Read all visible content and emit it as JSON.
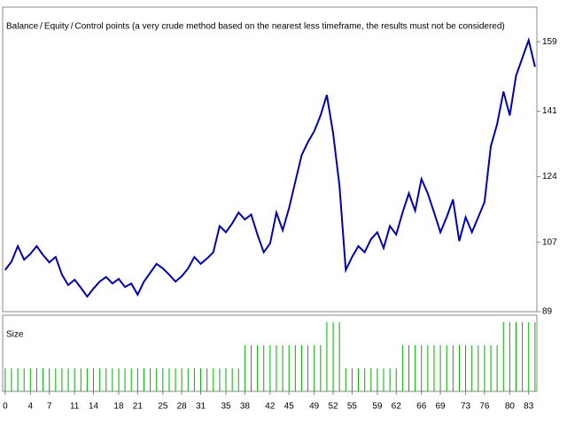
{
  "chart_data": [
    {
      "type": "line",
      "legend": [
        {
          "text": "Balance",
          "color": "#0000b0"
        },
        {
          "text": "Equity",
          "color": "#00a000"
        },
        {
          "text": "Control points (a very crude method based on the nearest less timeframe, the results must not be considered)",
          "color": "#ff0000"
        }
      ],
      "legend_separator": "/",
      "x": [
        0,
        1,
        2,
        3,
        4,
        5,
        6,
        7,
        8,
        9,
        10,
        11,
        12,
        13,
        14,
        15,
        16,
        17,
        18,
        19,
        20,
        21,
        22,
        23,
        24,
        25,
        26,
        27,
        28,
        29,
        30,
        31,
        32,
        33,
        34,
        35,
        36,
        37,
        38,
        39,
        40,
        41,
        42,
        43,
        44,
        45,
        46,
        47,
        48,
        49,
        50,
        51,
        52,
        53,
        54,
        55,
        56,
        57,
        58,
        59,
        60,
        61,
        62,
        63,
        64,
        65,
        66,
        67,
        68,
        69,
        70,
        71,
        72,
        73,
        74,
        75,
        76,
        77,
        78,
        79,
        80,
        81,
        82,
        83,
        84
      ],
      "series": [
        {
          "name": "Balance",
          "color": "#0000b0",
          "values": [
            99.8,
            102,
            106,
            102.5,
            104,
            106,
            103.7,
            101.8,
            103.2,
            98.6,
            95.9,
            97.3,
            95.2,
            92.9,
            95,
            96.8,
            98,
            96.3,
            97.5,
            95.4,
            96.3,
            93.4,
            96.8,
            99.1,
            101.4,
            100.2,
            98.6,
            96.8,
            98.2,
            100.2,
            103.2,
            101.4,
            102.8,
            104.4,
            111.2,
            109.6,
            111.9,
            114.7,
            112.9,
            114.2,
            109,
            104.4,
            106.7,
            114.7,
            110.1,
            115.8,
            122.7,
            129.6,
            133,
            135.8,
            139.9,
            145.2,
            135.3,
            121.6,
            99.8,
            103.2,
            106,
            104.4,
            107.8,
            109.6,
            105.5,
            111.2,
            109,
            114.7,
            119.7,
            115.2,
            123.4,
            119.7,
            114.7,
            109.6,
            113.5,
            118.1,
            107.3,
            113.5,
            109.6,
            113.5,
            117.4,
            131.9,
            137.6,
            146.1,
            139.9,
            150.2,
            154.8,
            159.4,
            152.5
          ]
        }
      ],
      "xlim": [
        -0.4,
        84.3
      ],
      "ylim": [
        89,
        168
      ],
      "yticks": [
        89,
        107,
        124,
        141,
        159
      ]
    },
    {
      "type": "bar",
      "title": "Size",
      "color": "#00b000",
      "x": [
        0,
        1,
        2,
        3,
        4,
        5,
        6,
        7,
        8,
        9,
        10,
        11,
        12,
        13,
        14,
        15,
        16,
        17,
        18,
        19,
        20,
        21,
        22,
        23,
        24,
        25,
        26,
        27,
        28,
        29,
        30,
        31,
        32,
        33,
        34,
        35,
        36,
        37,
        38,
        39,
        40,
        41,
        42,
        43,
        44,
        45,
        46,
        47,
        48,
        49,
        50,
        51,
        52,
        53,
        54,
        55,
        56,
        57,
        58,
        59,
        60,
        61,
        62,
        63,
        64,
        65,
        66,
        67,
        68,
        69,
        70,
        71,
        72,
        73,
        74,
        75,
        76,
        77,
        78,
        79,
        80,
        81,
        82,
        83,
        84
      ],
      "values": [
        1,
        1,
        1,
        1,
        1,
        1,
        1,
        1,
        1,
        1,
        1,
        1,
        1,
        1,
        1,
        1,
        1,
        1,
        1,
        1,
        1,
        1,
        1,
        1,
        1,
        1,
        1,
        1,
        1,
        1,
        1,
        1,
        1,
        1,
        1,
        1,
        1,
        1,
        2,
        2,
        2,
        2,
        2,
        2,
        2,
        2,
        2,
        2,
        2,
        2,
        2,
        3,
        3,
        3,
        1,
        1,
        1,
        1,
        1,
        1,
        1,
        1,
        1,
        2,
        2,
        2,
        2,
        2,
        2,
        2,
        2,
        2,
        2,
        2,
        2,
        2,
        2,
        2,
        2,
        3,
        3,
        3,
        3,
        3,
        3
      ],
      "xlim": [
        -0.4,
        84.3
      ],
      "ylim": [
        0,
        3.3
      ],
      "xticks": [
        0,
        4,
        7,
        11,
        14,
        18,
        21,
        25,
        28,
        31,
        35,
        38,
        42,
        45,
        49,
        52,
        55,
        59,
        62,
        66,
        69,
        73,
        76,
        80,
        83
      ]
    }
  ]
}
